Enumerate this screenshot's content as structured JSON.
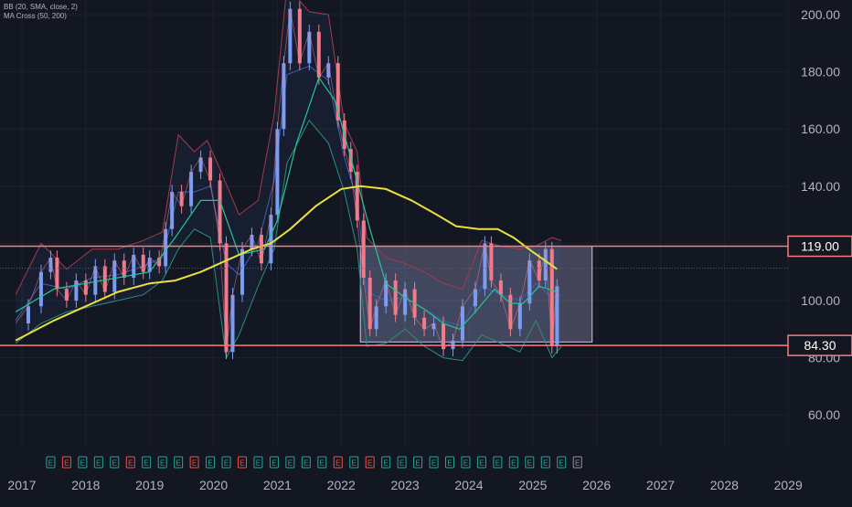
{
  "indicators": {
    "bb_label": "BB (20, SMA, close, 2)",
    "ma_label": "MA Cross (50, 200)"
  },
  "colors": {
    "background": "#131722",
    "grid": "#1e222d",
    "candle_up": "#7b9cf0",
    "candle_down": "#f07b8a",
    "bb_upper": "#a33a4b",
    "bb_lower": "#2a8f7a",
    "bb_basis": "#3f5fb0",
    "ma_fast": "#26c49a",
    "ma_slow": "#e8e040",
    "level_line": "#f77c80",
    "range_box_border": "#cfc6e6",
    "range_box_fill": "rgba(206,196,240,0.26)",
    "earnings_badge": "#26a69a",
    "earnings_badge_neg": "#ef5350",
    "axis_text": "#b2b5be"
  },
  "chart_data": {
    "type": "line",
    "title": "",
    "xlabel": "",
    "ylabel": "",
    "ylim": [
      52,
      207
    ],
    "xlim": [
      2016.9,
      2029.35
    ],
    "x_ticks": [
      "2017",
      "2018",
      "2019",
      "2020",
      "2021",
      "2022",
      "2023",
      "2024",
      "2025",
      "2026",
      "2027",
      "2028",
      "2029"
    ],
    "y_ticks": [
      "200.00",
      "180.00",
      "160.00",
      "140.00",
      "120.00",
      "100.00",
      "80.00",
      "60.00"
    ],
    "price_series": [
      [
        2016.9,
        92
      ],
      [
        2017.1,
        98
      ],
      [
        2017.3,
        110
      ],
      [
        2017.45,
        115
      ],
      [
        2017.55,
        104
      ],
      [
        2017.7,
        100
      ],
      [
        2017.85,
        107
      ],
      [
        2018.0,
        102
      ],
      [
        2018.15,
        112
      ],
      [
        2018.3,
        103
      ],
      [
        2018.45,
        114
      ],
      [
        2018.6,
        108
      ],
      [
        2018.75,
        116
      ],
      [
        2018.9,
        110
      ],
      [
        2019.0,
        115
      ],
      [
        2019.15,
        112
      ],
      [
        2019.25,
        125
      ],
      [
        2019.35,
        138
      ],
      [
        2019.5,
        133
      ],
      [
        2019.65,
        145
      ],
      [
        2019.8,
        150
      ],
      [
        2019.95,
        142
      ],
      [
        2020.1,
        120
      ],
      [
        2020.2,
        82
      ],
      [
        2020.3,
        102
      ],
      [
        2020.45,
        118
      ],
      [
        2020.6,
        123
      ],
      [
        2020.75,
        113
      ],
      [
        2020.9,
        130
      ],
      [
        2021.0,
        160
      ],
      [
        2021.1,
        183
      ],
      [
        2021.2,
        202
      ],
      [
        2021.35,
        183
      ],
      [
        2021.5,
        194
      ],
      [
        2021.65,
        178
      ],
      [
        2021.8,
        183
      ],
      [
        2021.95,
        163
      ],
      [
        2022.05,
        153
      ],
      [
        2022.15,
        145
      ],
      [
        2022.25,
        128
      ],
      [
        2022.35,
        108
      ],
      [
        2022.45,
        90
      ],
      [
        2022.55,
        98
      ],
      [
        2022.7,
        107
      ],
      [
        2022.85,
        95
      ],
      [
        2023.0,
        104
      ],
      [
        2023.15,
        94
      ],
      [
        2023.3,
        90
      ],
      [
        2023.45,
        92
      ],
      [
        2023.6,
        83
      ],
      [
        2023.75,
        86
      ],
      [
        2023.9,
        98
      ],
      [
        2024.1,
        104
      ],
      [
        2024.25,
        120
      ],
      [
        2024.35,
        107
      ],
      [
        2024.5,
        102
      ],
      [
        2024.65,
        90
      ],
      [
        2024.8,
        99
      ],
      [
        2024.95,
        114
      ],
      [
        2025.1,
        107
      ],
      [
        2025.2,
        118
      ],
      [
        2025.3,
        84
      ],
      [
        2025.38,
        105
      ]
    ],
    "bb_upper": [
      [
        2016.9,
        102
      ],
      [
        2017.3,
        120
      ],
      [
        2017.7,
        111
      ],
      [
        2018.1,
        118
      ],
      [
        2018.5,
        118
      ],
      [
        2018.9,
        121
      ],
      [
        2019.2,
        124
      ],
      [
        2019.45,
        158
      ],
      [
        2019.7,
        152
      ],
      [
        2019.9,
        156
      ],
      [
        2020.1,
        146
      ],
      [
        2020.4,
        130
      ],
      [
        2020.7,
        135
      ],
      [
        2020.95,
        165
      ],
      [
        2021.15,
        210
      ],
      [
        2021.5,
        201
      ],
      [
        2021.8,
        200
      ],
      [
        2022.05,
        162
      ],
      [
        2022.25,
        152
      ],
      [
        2022.4,
        122
      ],
      [
        2022.7,
        115
      ],
      [
        2023.0,
        113
      ],
      [
        2023.3,
        110
      ],
      [
        2023.6,
        106
      ],
      [
        2023.9,
        104
      ],
      [
        2024.2,
        121
      ],
      [
        2024.5,
        119
      ],
      [
        2024.8,
        118
      ],
      [
        2025.05,
        119
      ],
      [
        2025.3,
        122
      ],
      [
        2025.45,
        121
      ]
    ],
    "bb_lower": [
      [
        2016.9,
        85
      ],
      [
        2017.3,
        92
      ],
      [
        2017.7,
        96
      ],
      [
        2018.1,
        98
      ],
      [
        2018.5,
        100
      ],
      [
        2018.9,
        102
      ],
      [
        2019.2,
        107
      ],
      [
        2019.45,
        118
      ],
      [
        2019.7,
        125
      ],
      [
        2019.95,
        122
      ],
      [
        2020.2,
        80
      ],
      [
        2020.4,
        88
      ],
      [
        2020.7,
        105
      ],
      [
        2020.95,
        118
      ],
      [
        2021.15,
        148
      ],
      [
        2021.5,
        163
      ],
      [
        2021.8,
        155
      ],
      [
        2022.05,
        138
      ],
      [
        2022.25,
        118
      ],
      [
        2022.4,
        84
      ],
      [
        2022.7,
        85
      ],
      [
        2023.0,
        90
      ],
      [
        2023.3,
        84
      ],
      [
        2023.6,
        80
      ],
      [
        2023.9,
        79
      ],
      [
        2024.2,
        88
      ],
      [
        2024.5,
        85
      ],
      [
        2024.8,
        82
      ],
      [
        2025.05,
        93
      ],
      [
        2025.3,
        80
      ],
      [
        2025.45,
        84
      ]
    ],
    "bb_basis": [
      [
        2016.9,
        93
      ],
      [
        2017.3,
        106
      ],
      [
        2017.7,
        104
      ],
      [
        2018.1,
        108
      ],
      [
        2018.5,
        109
      ],
      [
        2018.9,
        112
      ],
      [
        2019.2,
        115
      ],
      [
        2019.45,
        138
      ],
      [
        2019.7,
        138
      ],
      [
        2019.95,
        140
      ],
      [
        2020.2,
        113
      ],
      [
        2020.4,
        109
      ],
      [
        2020.7,
        120
      ],
      [
        2020.95,
        142
      ],
      [
        2021.15,
        179
      ],
      [
        2021.5,
        182
      ],
      [
        2021.8,
        177
      ],
      [
        2022.05,
        150
      ],
      [
        2022.25,
        135
      ],
      [
        2022.4,
        103
      ],
      [
        2022.7,
        100
      ],
      [
        2023.0,
        101
      ],
      [
        2023.3,
        97
      ],
      [
        2023.6,
        93
      ],
      [
        2023.9,
        91
      ],
      [
        2024.2,
        105
      ],
      [
        2024.5,
        102
      ],
      [
        2024.8,
        100
      ],
      [
        2025.05,
        106
      ],
      [
        2025.3,
        101
      ],
      [
        2025.45,
        102
      ]
    ],
    "ma_fast": [
      [
        2016.9,
        96
      ],
      [
        2017.5,
        104
      ],
      [
        2018.0,
        106
      ],
      [
        2018.5,
        108
      ],
      [
        2019.0,
        110
      ],
      [
        2019.4,
        122
      ],
      [
        2019.8,
        135
      ],
      [
        2020.1,
        135
      ],
      [
        2020.4,
        116
      ],
      [
        2020.8,
        118
      ],
      [
        2021.0,
        128
      ],
      [
        2021.3,
        155
      ],
      [
        2021.65,
        178
      ],
      [
        2021.9,
        170
      ],
      [
        2022.15,
        150
      ],
      [
        2022.45,
        125
      ],
      [
        2022.7,
        106
      ],
      [
        2023.0,
        101
      ],
      [
        2023.3,
        97
      ],
      [
        2023.6,
        92
      ],
      [
        2023.85,
        90
      ],
      [
        2024.1,
        96
      ],
      [
        2024.4,
        104
      ],
      [
        2024.65,
        99
      ],
      [
        2024.85,
        99
      ],
      [
        2025.1,
        105
      ],
      [
        2025.38,
        103
      ]
    ],
    "ma_slow": [
      [
        2016.9,
        86
      ],
      [
        2017.5,
        93
      ],
      [
        2018.0,
        98
      ],
      [
        2018.5,
        103
      ],
      [
        2019.0,
        106
      ],
      [
        2019.4,
        107
      ],
      [
        2019.8,
        110
      ],
      [
        2020.2,
        114
      ],
      [
        2020.6,
        118
      ],
      [
        2020.9,
        120
      ],
      [
        2021.2,
        125
      ],
      [
        2021.6,
        133
      ],
      [
        2022.0,
        139
      ],
      [
        2022.3,
        140
      ],
      [
        2022.7,
        139
      ],
      [
        2023.1,
        135
      ],
      [
        2023.5,
        130
      ],
      [
        2023.8,
        126
      ],
      [
        2024.15,
        125
      ],
      [
        2024.45,
        125
      ],
      [
        2024.7,
        122
      ],
      [
        2025.0,
        117
      ],
      [
        2025.38,
        111
      ]
    ],
    "levels": [
      {
        "value": 119.0,
        "label": "119.00"
      },
      {
        "value": 84.3,
        "label": "84.30"
      }
    ],
    "range_box": {
      "x_start": 2022.3,
      "x_end": 2025.93,
      "y_low": 85.5,
      "y_high": 119.0
    },
    "current_price": 111.3,
    "earnings_markers": [
      {
        "x": 2017.45,
        "label": "E",
        "kind": "pos"
      },
      {
        "x": 2017.7,
        "label": "E",
        "kind": "neg"
      },
      {
        "x": 2017.95,
        "label": "E",
        "kind": "pos"
      },
      {
        "x": 2018.2,
        "label": "E",
        "kind": "pos"
      },
      {
        "x": 2018.45,
        "label": "E",
        "kind": "pos"
      },
      {
        "x": 2018.7,
        "label": "E",
        "kind": "neg"
      },
      {
        "x": 2018.95,
        "label": "E",
        "kind": "pos"
      },
      {
        "x": 2019.2,
        "label": "E",
        "kind": "pos"
      },
      {
        "x": 2019.45,
        "label": "E",
        "kind": "pos"
      },
      {
        "x": 2019.7,
        "label": "E",
        "kind": "neg"
      },
      {
        "x": 2019.95,
        "label": "E",
        "kind": "pos"
      },
      {
        "x": 2020.2,
        "label": "E",
        "kind": "pos"
      },
      {
        "x": 2020.45,
        "label": "E",
        "kind": "neg"
      },
      {
        "x": 2020.7,
        "label": "E",
        "kind": "pos"
      },
      {
        "x": 2020.95,
        "label": "E",
        "kind": "pos"
      },
      {
        "x": 2021.2,
        "label": "E",
        "kind": "pos"
      },
      {
        "x": 2021.45,
        "label": "E",
        "kind": "pos"
      },
      {
        "x": 2021.7,
        "label": "E",
        "kind": "pos"
      },
      {
        "x": 2021.95,
        "label": "E",
        "kind": "neg"
      },
      {
        "x": 2022.2,
        "label": "E",
        "kind": "pos"
      },
      {
        "x": 2022.45,
        "label": "E",
        "kind": "neg"
      },
      {
        "x": 2022.7,
        "label": "E",
        "kind": "pos"
      },
      {
        "x": 2022.95,
        "label": "E",
        "kind": "pos"
      },
      {
        "x": 2023.2,
        "label": "E",
        "kind": "pos"
      },
      {
        "x": 2023.45,
        "label": "E",
        "kind": "pos"
      },
      {
        "x": 2023.7,
        "label": "E",
        "kind": "pos"
      },
      {
        "x": 2023.95,
        "label": "E",
        "kind": "pos"
      },
      {
        "x": 2024.2,
        "label": "E",
        "kind": "pos"
      },
      {
        "x": 2024.45,
        "label": "E",
        "kind": "pos"
      },
      {
        "x": 2024.7,
        "label": "E",
        "kind": "pos"
      },
      {
        "x": 2024.95,
        "label": "E",
        "kind": "pos"
      },
      {
        "x": 2025.2,
        "label": "E",
        "kind": "pos"
      },
      {
        "x": 2025.45,
        "label": "E",
        "kind": "pos"
      },
      {
        "x": 2025.7,
        "label": "E",
        "kind": "future"
      }
    ]
  }
}
